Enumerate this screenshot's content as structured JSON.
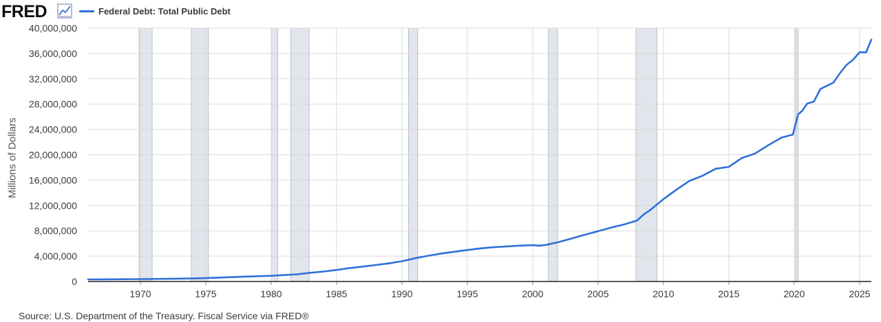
{
  "header": {
    "logo_text": "FRED",
    "logo_icon": "line-chart-icon",
    "series_label": "Federal Debt: Total Public Debt"
  },
  "source_note": "Source: U.S. Department of the Treasury. Fiscal Service via FRED®",
  "colors": {
    "series": "#2e6fd8",
    "recession": "#e1e5ec",
    "grid": "#d9d9d9",
    "axis": "#222222"
  },
  "chart_data": {
    "type": "line",
    "ylabel": "Millions of Dollars",
    "xlim": [
      1966.0,
      2025.9
    ],
    "ylim": [
      0,
      40000000
    ],
    "x_ticks": [
      1970,
      1975,
      1980,
      1985,
      1990,
      1995,
      2000,
      2005,
      2010,
      2015,
      2020,
      2025
    ],
    "y_ticks": [
      0,
      4000000,
      8000000,
      12000000,
      16000000,
      20000000,
      24000000,
      28000000,
      32000000,
      36000000,
      40000000
    ],
    "y_tick_labels": [
      "0",
      "4,000,000",
      "8,000,000",
      "12,000,000",
      "16,000,000",
      "20,000,000",
      "24,000,000",
      "28,000,000",
      "32,000,000",
      "36,000,000",
      "40,000,000"
    ],
    "grid": true,
    "recessions": [
      [
        1969.9,
        1970.9
      ],
      [
        1973.9,
        1975.2
      ],
      [
        1980.0,
        1980.5
      ],
      [
        1981.5,
        1982.9
      ],
      [
        1990.5,
        1991.2
      ],
      [
        2001.2,
        2001.9
      ],
      [
        2007.9,
        2009.5
      ],
      [
        2020.1,
        2020.3
      ]
    ],
    "series": [
      {
        "name": "Federal Debt: Total Public Debt",
        "x": [
          1966.0,
          1968,
          1970,
          1972,
          1974,
          1975,
          1976,
          1978,
          1980,
          1982,
          1983,
          1984,
          1985,
          1986,
          1987,
          1988,
          1989,
          1990,
          1991,
          1992,
          1993,
          1994,
          1995,
          1996,
          1997,
          1998,
          1999,
          2000,
          2000.5,
          2001,
          2002,
          2003,
          2004,
          2005,
          2006,
          2007,
          2008,
          2008.5,
          2009,
          2010,
          2011,
          2012,
          2013,
          2014,
          2015,
          2016,
          2017,
          2018,
          2019,
          2019.9,
          2020.3,
          2020.6,
          2021,
          2021.5,
          2022,
          2022.5,
          2023,
          2023.5,
          2024,
          2024.5,
          2025,
          2025.5,
          2025.9
        ],
        "values": [
          320000,
          347000,
          380000,
          427000,
          475000,
          530000,
          620000,
          770000,
          900000,
          1140000,
          1380000,
          1570000,
          1820000,
          2120000,
          2350000,
          2600000,
          2860000,
          3200000,
          3660000,
          4060000,
          4410000,
          4690000,
          4970000,
          5220000,
          5410000,
          5530000,
          5660000,
          5730000,
          5660000,
          5770000,
          6230000,
          6810000,
          7380000,
          7930000,
          8510000,
          9010000,
          9650000,
          10600000,
          11300000,
          13000000,
          14500000,
          15900000,
          16700000,
          17800000,
          18100000,
          19500000,
          20200000,
          21500000,
          22700000,
          23200000,
          26400000,
          26900000,
          28100000,
          28400000,
          30400000,
          30900000,
          31400000,
          32900000,
          34200000,
          35000000,
          36200000,
          36200000,
          38200000
        ]
      }
    ]
  }
}
